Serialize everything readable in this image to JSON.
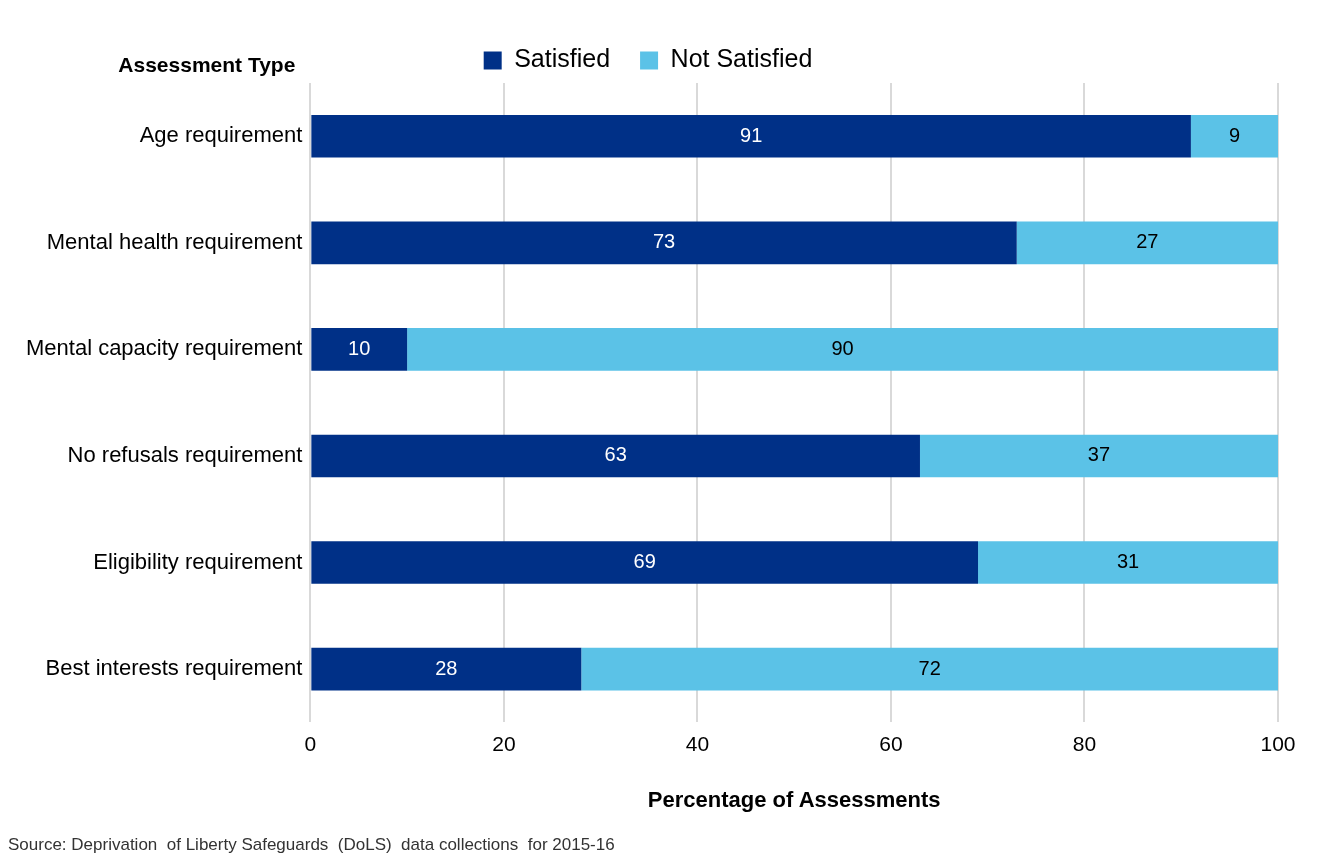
{
  "chart_data": {
    "type": "bar",
    "orientation": "horizontal",
    "stacked": true,
    "ylabel": "Assessment Type",
    "xlabel": "Percentage of Assessments",
    "categories": [
      "Age requirement",
      "Mental health requirement",
      "Mental capacity requirement",
      "No refusals requirement",
      "Eligibility requirement",
      "Best interests requirement"
    ],
    "series": [
      {
        "name": "Satisfied",
        "color": "#003087",
        "values": [
          91,
          73,
          10,
          63,
          69,
          28
        ]
      },
      {
        "name": "Not Satisfied",
        "color": "#5bc2e7",
        "values": [
          9,
          27,
          90,
          37,
          31,
          72
        ]
      }
    ],
    "xlim": [
      0,
      100
    ],
    "xticks": [
      0,
      20,
      40,
      60,
      80,
      100
    ],
    "grid": "x",
    "legend": "top",
    "data_labels": true,
    "annotations": [
      "Source: Deprivation  of Liberty Safeguards  (DoLS)  data collections  for 2015-16"
    ]
  }
}
